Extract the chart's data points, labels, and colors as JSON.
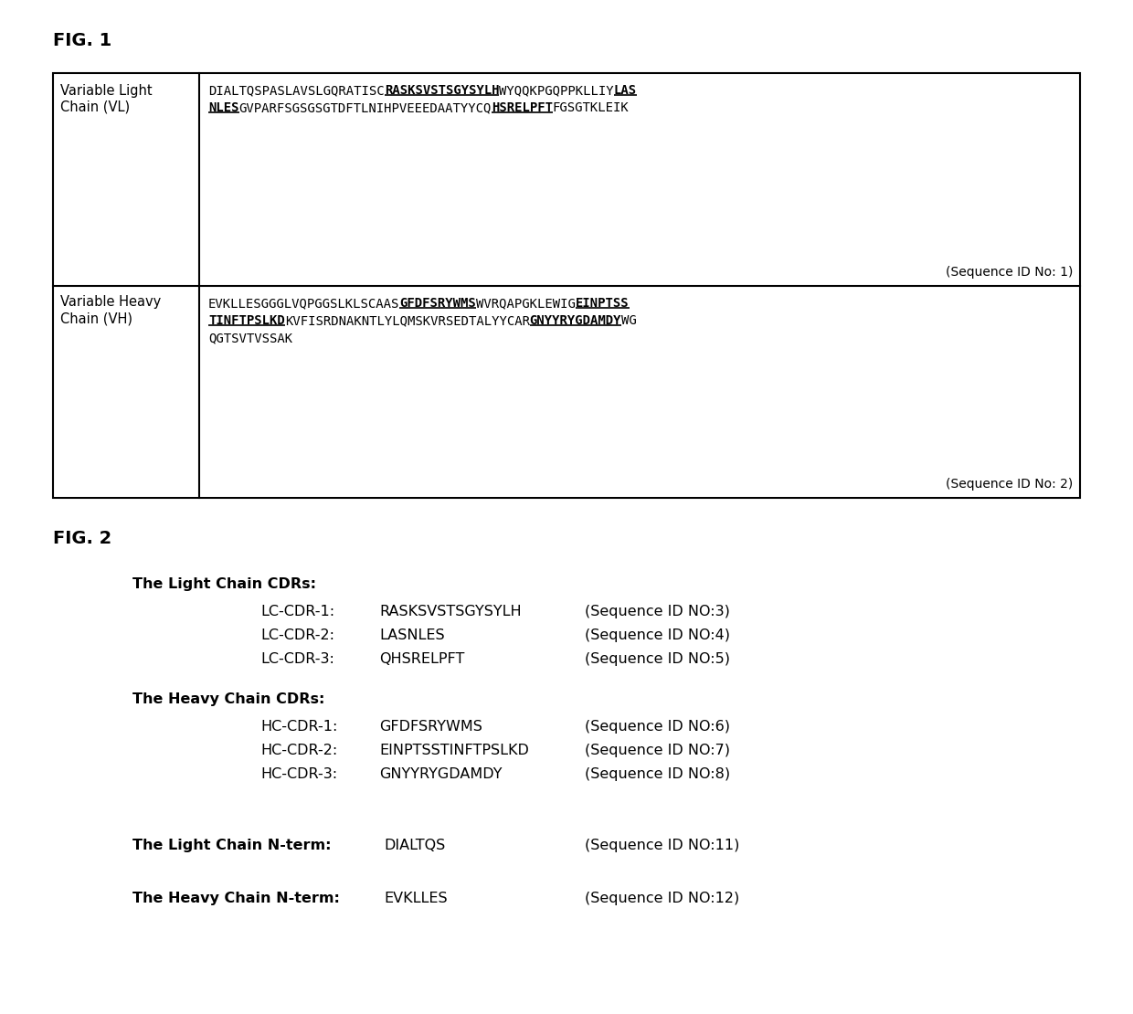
{
  "fig1_label": "FIG. 1",
  "fig2_label": "FIG. 2",
  "bg_color": "#ffffff",
  "table": {
    "row1_label1": "Variable Light",
    "row1_label2": "Chain (VL)",
    "row1_line1": [
      [
        "DIALTQSPASLAVSLGQRATISC",
        false,
        false
      ],
      [
        "RASKSVSTSGYSYLH",
        true,
        true
      ],
      [
        "WYQQKPGQPPKLLIY",
        false,
        false
      ],
      [
        "LAS",
        true,
        true
      ]
    ],
    "row1_line2": [
      [
        "NLES",
        true,
        true
      ],
      [
        "GVPARFSGSGSGTDFTLNIHPVEEEDAATYYCQ",
        false,
        false
      ],
      [
        "HSRELPFT",
        true,
        true
      ],
      [
        "FGSGTKLEIK",
        false,
        false
      ]
    ],
    "row1_seqid": "(Sequence ID No: 1)",
    "row2_label1": "Variable Heavy",
    "row2_label2": "Chain (VH)",
    "row2_line1": [
      [
        "EVKLLESGGGLVQPGGSLKLSCAAS",
        false,
        false
      ],
      [
        "GFDFSRYWMS",
        true,
        true
      ],
      [
        "WVRQAPGKLEWIG",
        false,
        false
      ],
      [
        "EINPTSS",
        true,
        true
      ]
    ],
    "row2_line2": [
      [
        "TINFTPSLKD",
        true,
        true
      ],
      [
        "KVFISRDNAKNTLYLQMSKVRSEDTALYYCAR",
        false,
        false
      ],
      [
        "GNYYRYGDAMDY",
        true,
        true
      ],
      [
        "WG",
        false,
        false
      ]
    ],
    "row2_line3": "QGTSVTVSSAK",
    "row2_seqid": "(Sequence ID No: 2)"
  },
  "fig2": {
    "light_chain_header": "The Light Chain CDRs:",
    "lc_cdrs": [
      {
        "label": "LC-CDR-1:",
        "seq": "RASKSVSTSGYSYLH",
        "seqid": "(Sequence ID NO:3)"
      },
      {
        "label": "LC-CDR-2:",
        "seq": "LASNLES",
        "seqid": "(Sequence ID NO:4)"
      },
      {
        "label": "LC-CDR-3:",
        "seq": "QHSRELPFT",
        "seqid": "(Sequence ID NO:5)"
      }
    ],
    "heavy_chain_header": "The Heavy Chain CDRs:",
    "hc_cdrs": [
      {
        "label": "HC-CDR-1:",
        "seq": "GFDFSRYWMS",
        "seqid": "(Sequence ID NO:6)"
      },
      {
        "label": "HC-CDR-2:",
        "seq": "EINPTSSTINFTPSLKD",
        "seqid": "(Sequence ID NO:7)"
      },
      {
        "label": "HC-CDR-3:",
        "seq": "GNYYRYGDAMDY",
        "seqid": "(Sequence ID NO:8)"
      }
    ],
    "light_nterm_label": "The Light Chain N-term:",
    "light_nterm_seq": "DIALTQS",
    "light_nterm_seqid": "(Sequence ID NO:11)",
    "heavy_nterm_label": "The Heavy Chain N-term:",
    "heavy_nterm_seq": "EVKLLES",
    "heavy_nterm_seqid": "(Sequence ID NO:12)"
  }
}
